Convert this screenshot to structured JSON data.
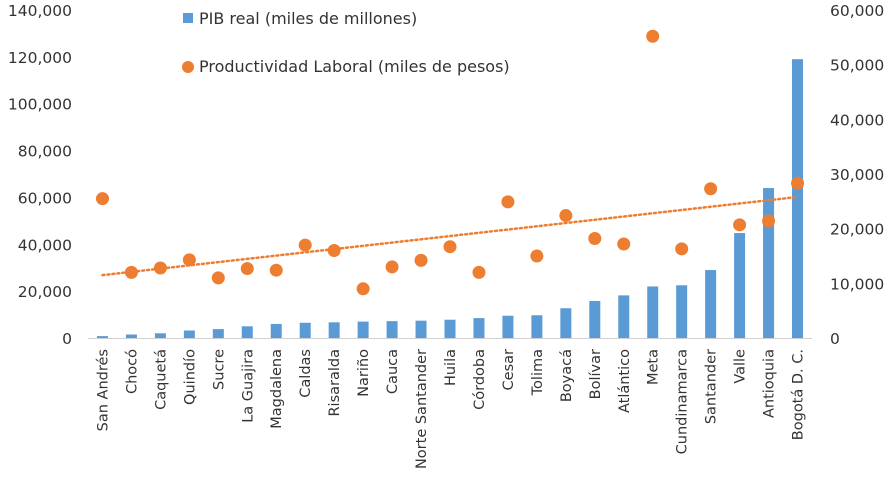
{
  "chart_data": {
    "type": "bar",
    "categories": [
      "San Andrés",
      "Chocó",
      "Caquetá",
      "Quindío",
      "Sucre",
      "La Guajira",
      "Magdalena",
      "Caldas",
      "Risaralda",
      "Nariño",
      "Cauca",
      "Norte Santander",
      "Huila",
      "Córdoba",
      "Cesar",
      "Tolima",
      "Boyacá",
      "Bolívar",
      "Atlántico",
      "Meta",
      "Cundinamarca",
      "Santander",
      "Valle",
      "Antioquia",
      "Bogotá D. C."
    ],
    "series": [
      {
        "name": "PIB real (miles de millones)",
        "type": "bar",
        "axis": "left",
        "color": "#5b9bd5",
        "values": [
          800,
          1500,
          2000,
          3200,
          3800,
          5000,
          6000,
          6500,
          6700,
          7000,
          7200,
          7400,
          7800,
          8500,
          9500,
          9700,
          12700,
          15800,
          18200,
          22000,
          22500,
          29000,
          44800,
          64000,
          119000
        ]
      },
      {
        "name": "Productividad Laboral (miles de pesos)",
        "type": "scatter",
        "axis": "right",
        "color": "#ed7d31",
        "values": [
          25500,
          12000,
          12800,
          14300,
          11000,
          12700,
          12400,
          17000,
          16000,
          9000,
          13000,
          14200,
          16700,
          12000,
          24900,
          15000,
          22400,
          18200,
          17200,
          55200,
          16300,
          27300,
          20700,
          21400,
          28300
        ]
      }
    ],
    "trendline": {
      "series": "Productividad Laboral (miles de pesos)",
      "start": 11500,
      "end": 25800,
      "color": "#ed7d31",
      "style": "dotted"
    },
    "y_left": {
      "min": 0,
      "max": 140000,
      "ticks": [
        "0",
        "20,000",
        "40,000",
        "60,000",
        "80,000",
        "100,000",
        "120,000",
        "140,000"
      ]
    },
    "y_right": {
      "min": 0,
      "max": 60000,
      "ticks": [
        "0",
        "10,000",
        "20,000",
        "30,000",
        "40,000",
        "50,000",
        "60,000"
      ]
    },
    "legend": [
      {
        "label": "PIB real (miles de millones)",
        "marker": "square",
        "color": "#5b9bd5"
      },
      {
        "label": "Productividad Laboral (miles de pesos)",
        "marker": "circle",
        "color": "#ed7d31"
      }
    ],
    "legend_position": "top-center",
    "grid": false
  }
}
